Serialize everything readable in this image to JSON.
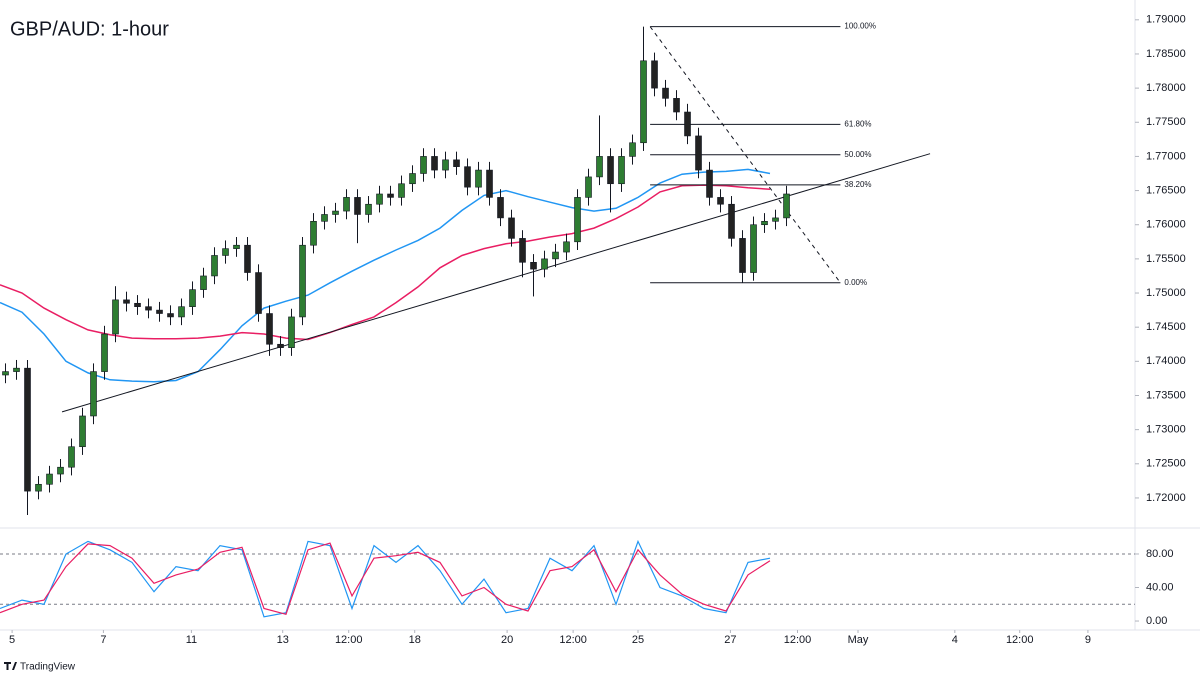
{
  "header": {
    "title": "GBP/AUD: 1-hour",
    "brand": "TradingView"
  },
  "chart_data": [
    {
      "type": "candlestick",
      "xlim": [
        0,
        103.18
      ],
      "ylim": [
        1.7156,
        1.7929
      ],
      "up_color": "#2e7d32",
      "down_color": "#222222",
      "yticks": [
        {
          "value": 1.72,
          "label": "1.72000"
        },
        {
          "value": 1.725,
          "label": "1.72500"
        },
        {
          "value": 1.73,
          "label": "1.73000"
        },
        {
          "value": 1.735,
          "label": "1.73500"
        },
        {
          "value": 1.74,
          "label": "1.74000"
        },
        {
          "value": 1.745,
          "label": "1.74500"
        },
        {
          "value": 1.75,
          "label": "1.75000"
        },
        {
          "value": 1.755,
          "label": "1.75500"
        },
        {
          "value": 1.76,
          "label": "1.76000"
        },
        {
          "value": 1.765,
          "label": "1.76500"
        },
        {
          "value": 1.77,
          "label": "1.77000"
        },
        {
          "value": 1.775,
          "label": "1.77500"
        },
        {
          "value": 1.78,
          "label": "1.78000"
        },
        {
          "value": 1.785,
          "label": "1.78500"
        },
        {
          "value": 1.79,
          "label": "1.79000"
        }
      ],
      "x": [
        0.5,
        1.5,
        2.5,
        3.5,
        4.5,
        5.5,
        6.5,
        7.5,
        8.5,
        9.5,
        10.5,
        11.5,
        12.5,
        13.5,
        14.5,
        15.5,
        16.5,
        17.5,
        18.5,
        19.5,
        20.5,
        21.5,
        22.5,
        23.5,
        24.5,
        25.5,
        26.5,
        27.5,
        28.5,
        29.5,
        30.5,
        31.5,
        32.5,
        33.5,
        34.5,
        35.5,
        36.5,
        37.5,
        38.5,
        39.5,
        40.5,
        41.5,
        42.5,
        43.5,
        44.5,
        45.5,
        46.5,
        47.5,
        48.5,
        49.5,
        50.5,
        51.5,
        52.5,
        53.5,
        54.5,
        55.5,
        56.5,
        57.5,
        58.5,
        59.5,
        60.5,
        61.5,
        62.5,
        63.5,
        64.5,
        65.5,
        66.5,
        67.5,
        68.5,
        69.5,
        70.5,
        71.5
      ],
      "open": [
        1.738,
        1.7385,
        1.739,
        1.721,
        1.722,
        1.7235,
        1.7245,
        1.7275,
        1.732,
        1.7385,
        1.744,
        1.749,
        1.7485,
        1.748,
        1.7475,
        1.747,
        1.7465,
        1.748,
        1.7505,
        1.7525,
        1.7555,
        1.7565,
        1.757,
        1.753,
        1.747,
        1.7425,
        1.742,
        1.7465,
        1.757,
        1.7605,
        1.7615,
        1.762,
        1.764,
        1.7615,
        1.763,
        1.7645,
        1.764,
        1.766,
        1.7675,
        1.77,
        1.768,
        1.7695,
        1.7685,
        1.7655,
        1.768,
        1.764,
        1.761,
        1.758,
        1.7545,
        1.7535,
        1.755,
        1.756,
        1.7575,
        1.764,
        1.767,
        1.77,
        1.766,
        1.77,
        1.772,
        1.784,
        1.78,
        1.7785,
        1.7765,
        1.773,
        1.768,
        1.764,
        1.763,
        1.758,
        1.753,
        1.76,
        1.7605,
        1.761
      ],
      "high": [
        1.7397,
        1.7402,
        1.7402,
        1.7232,
        1.7247,
        1.7257,
        1.7287,
        1.7332,
        1.7397,
        1.7452,
        1.751,
        1.7502,
        1.7497,
        1.7492,
        1.7487,
        1.7482,
        1.7492,
        1.7517,
        1.7537,
        1.7567,
        1.7577,
        1.7582,
        1.7582,
        1.7542,
        1.7482,
        1.7437,
        1.7477,
        1.7582,
        1.7617,
        1.7627,
        1.7632,
        1.7652,
        1.7652,
        1.7642,
        1.7657,
        1.7657,
        1.7672,
        1.7687,
        1.7712,
        1.7712,
        1.7707,
        1.7707,
        1.7697,
        1.7692,
        1.7692,
        1.7652,
        1.7622,
        1.7592,
        1.7557,
        1.7562,
        1.7572,
        1.7587,
        1.7652,
        1.7682,
        1.776,
        1.7712,
        1.7712,
        1.7732,
        1.789,
        1.7852,
        1.7812,
        1.7797,
        1.7777,
        1.7742,
        1.7692,
        1.7652,
        1.7642,
        1.7592,
        1.7612,
        1.7617,
        1.7622,
        1.7657
      ],
      "low": [
        1.7368,
        1.7373,
        1.7175,
        1.7198,
        1.7208,
        1.7223,
        1.7233,
        1.7263,
        1.7308,
        1.7373,
        1.7428,
        1.7473,
        1.7468,
        1.7463,
        1.7458,
        1.7453,
        1.7453,
        1.7468,
        1.7493,
        1.7513,
        1.7543,
        1.7553,
        1.7518,
        1.7458,
        1.7408,
        1.7408,
        1.7408,
        1.7453,
        1.7558,
        1.7593,
        1.7603,
        1.7608,
        1.7573,
        1.7603,
        1.7618,
        1.7628,
        1.7628,
        1.7648,
        1.7663,
        1.7668,
        1.7668,
        1.7673,
        1.7643,
        1.7643,
        1.7628,
        1.7598,
        1.7568,
        1.7523,
        1.7495,
        1.7523,
        1.7538,
        1.7548,
        1.7563,
        1.7628,
        1.7658,
        1.7618,
        1.7648,
        1.7688,
        1.7708,
        1.7788,
        1.7773,
        1.7753,
        1.7718,
        1.7668,
        1.7628,
        1.7618,
        1.7568,
        1.7515,
        1.7518,
        1.7588,
        1.7593,
        1.7598
      ],
      "close": [
        1.7385,
        1.739,
        1.721,
        1.722,
        1.7235,
        1.7245,
        1.7275,
        1.732,
        1.7385,
        1.744,
        1.749,
        1.7485,
        1.748,
        1.7475,
        1.747,
        1.7465,
        1.748,
        1.7505,
        1.7525,
        1.7555,
        1.7565,
        1.757,
        1.753,
        1.747,
        1.7425,
        1.742,
        1.7465,
        1.757,
        1.7605,
        1.7615,
        1.762,
        1.764,
        1.7615,
        1.763,
        1.7645,
        1.764,
        1.766,
        1.7675,
        1.77,
        1.768,
        1.7695,
        1.7685,
        1.7655,
        1.768,
        1.764,
        1.761,
        1.758,
        1.7545,
        1.7535,
        1.755,
        1.756,
        1.7575,
        1.764,
        1.767,
        1.77,
        1.766,
        1.77,
        1.772,
        1.784,
        1.78,
        1.7785,
        1.7765,
        1.773,
        1.768,
        1.764,
        1.763,
        1.758,
        1.753,
        1.76,
        1.7605,
        1.761,
        1.7645
      ],
      "series": [
        {
          "color": "#2196f3",
          "x": [
            0,
            2,
            4,
            6,
            8,
            10,
            12,
            14,
            16,
            18,
            20,
            22,
            24,
            26,
            28,
            30,
            32,
            34,
            36,
            38,
            40,
            42,
            44,
            46,
            48,
            50,
            52,
            54,
            56,
            58,
            60,
            62,
            64,
            66,
            68,
            70
          ],
          "values": [
            1.7486,
            1.7472,
            1.744,
            1.74,
            1.7383,
            1.7373,
            1.7371,
            1.737,
            1.7372,
            1.7385,
            1.7417,
            1.7452,
            1.7478,
            1.7488,
            1.7497,
            1.7515,
            1.7532,
            1.7548,
            1.7563,
            1.7577,
            1.7595,
            1.7621,
            1.7643,
            1.765,
            1.7641,
            1.7633,
            1.7625,
            1.762,
            1.7624,
            1.764,
            1.7661,
            1.7674,
            1.7677,
            1.7678,
            1.7681,
            1.7675
          ]
        },
        {
          "color": "#e91e63",
          "x": [
            0,
            2,
            4,
            6,
            8,
            10,
            12,
            14,
            16,
            18,
            20,
            22,
            24,
            26,
            28,
            30,
            32,
            34,
            36,
            38,
            40,
            42,
            44,
            46,
            48,
            50,
            52,
            54,
            56,
            58,
            60,
            62,
            64,
            66,
            68,
            70
          ],
          "values": [
            1.7512,
            1.75,
            1.7478,
            1.7461,
            1.7446,
            1.7439,
            1.7434,
            1.7433,
            1.7433,
            1.7434,
            1.7437,
            1.7442,
            1.744,
            1.7434,
            1.7432,
            1.7442,
            1.7454,
            1.7465,
            1.7486,
            1.7509,
            1.7537,
            1.7555,
            1.7565,
            1.7572,
            1.7576,
            1.7582,
            1.7587,
            1.7595,
            1.7609,
            1.7626,
            1.7648,
            1.7657,
            1.7658,
            1.7657,
            1.7654,
            1.7652
          ]
        }
      ],
      "trendline": {
        "x": [
          5.64,
          84.55
        ],
        "values": [
          1.7326,
          1.7704
        ]
      },
      "fib": {
        "x": [
          59.1,
          76.4
        ],
        "diagonal": [
          1.789,
          1.7515
        ],
        "levels": [
          {
            "value": 1.789,
            "label": "100.00%"
          },
          {
            "value": 1.7747,
            "label": "61.80%"
          },
          {
            "value": 1.77025,
            "label": "50.00%"
          },
          {
            "value": 1.76583,
            "label": "38.20%"
          },
          {
            "value": 1.7515,
            "label": "0.00%"
          }
        ]
      }
    },
    {
      "type": "line",
      "xlim": [
        0,
        103.18
      ],
      "ylim": [
        -10.7,
        111
      ],
      "yticks": [
        {
          "value": 0,
          "label": "0.00"
        },
        {
          "value": 40,
          "label": "40.00"
        },
        {
          "value": 80,
          "label": "80.00"
        }
      ],
      "levels": [
        20,
        80
      ],
      "xticks": [
        {
          "value": 1.1,
          "label": "5"
        },
        {
          "value": 9.4,
          "label": "7"
        },
        {
          "value": 17.4,
          "label": "11"
        },
        {
          "value": 25.7,
          "label": "13"
        },
        {
          "value": 31.7,
          "label": "12:00"
        },
        {
          "value": 37.7,
          "label": "18"
        },
        {
          "value": 46.1,
          "label": "20"
        },
        {
          "value": 52.1,
          "label": "12:00"
        },
        {
          "value": 58,
          "label": "25"
        },
        {
          "value": 66.4,
          "label": "27"
        },
        {
          "value": 72.5,
          "label": "12:00"
        },
        {
          "value": 78,
          "label": "May"
        },
        {
          "value": 86.8,
          "label": "4"
        },
        {
          "value": 92.7,
          "label": "12:00"
        },
        {
          "value": 98.9,
          "label": "9"
        }
      ],
      "series": [
        {
          "color": "#2196f3",
          "x": [
            0,
            2,
            4,
            6,
            8,
            10,
            12,
            14,
            16,
            18,
            20,
            22,
            24,
            26,
            28,
            30,
            32,
            34,
            36,
            38,
            40,
            42,
            44,
            46,
            48,
            50,
            52,
            54,
            56,
            58,
            60,
            62,
            64,
            66,
            68,
            70
          ],
          "values": [
            15,
            25,
            20,
            80,
            95,
            85,
            70,
            35,
            65,
            60,
            90,
            85,
            5,
            10,
            95,
            90,
            15,
            90,
            70,
            90,
            60,
            20,
            50,
            10,
            15,
            75,
            60,
            90,
            20,
            95,
            40,
            30,
            15,
            10,
            70,
            75
          ]
        },
        {
          "color": "#e91e63",
          "x": [
            0,
            2,
            4,
            6,
            8,
            10,
            12,
            14,
            16,
            18,
            20,
            22,
            24,
            26,
            28,
            30,
            32,
            34,
            36,
            38,
            40,
            42,
            44,
            46,
            48,
            50,
            52,
            54,
            56,
            58,
            60,
            62,
            64,
            66,
            68,
            70
          ],
          "values": [
            10,
            20,
            25,
            65,
            92,
            90,
            75,
            45,
            55,
            62,
            82,
            88,
            15,
            8,
            85,
            93,
            30,
            75,
            78,
            82,
            70,
            30,
            40,
            20,
            12,
            60,
            65,
            85,
            35,
            85,
            55,
            32,
            20,
            12,
            55,
            72
          ]
        }
      ]
    }
  ]
}
